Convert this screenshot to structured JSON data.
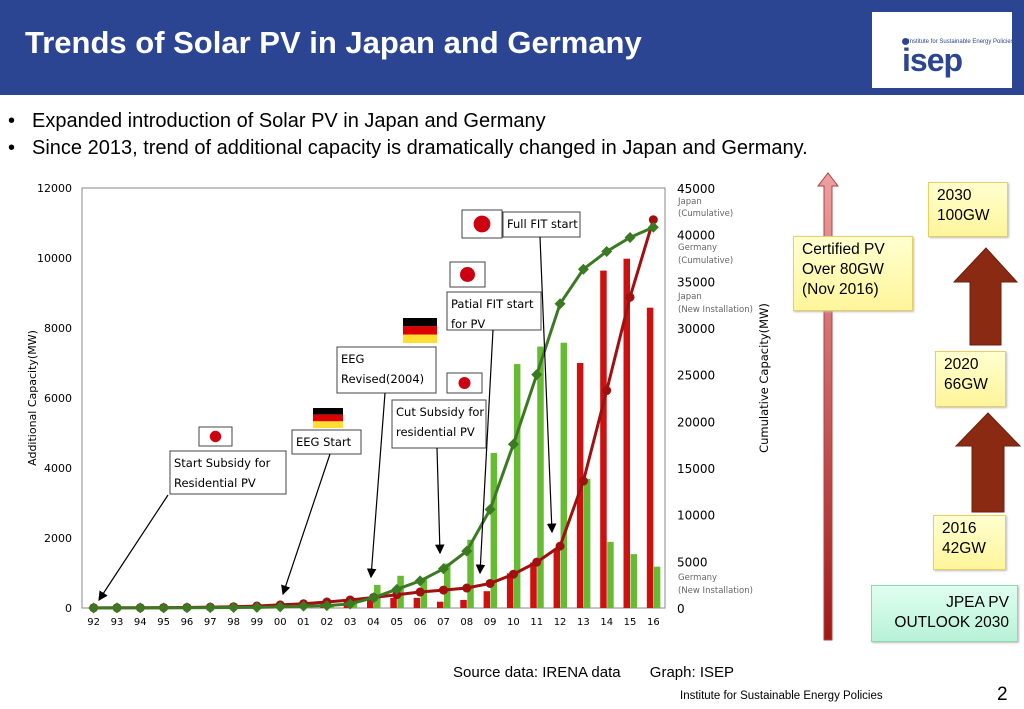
{
  "header": {
    "title": "Trends of Solar PV in Japan and Germany",
    "logo_text": "isep",
    "logo_subtext": "Institute for Sustainable Energy Policies"
  },
  "bullets": [
    "Expanded introduction of Solar PV in Japan and Germany",
    "Since 2013, trend of additional capacity is dramatically changed in Japan and Germany."
  ],
  "chart_data": {
    "type": "bar+line",
    "categories": [
      "92",
      "93",
      "94",
      "95",
      "96",
      "97",
      "98",
      "99",
      "00",
      "01",
      "02",
      "03",
      "04",
      "05",
      "06",
      "07",
      "08",
      "09",
      "10",
      "11",
      "12",
      "13",
      "14",
      "15",
      "16"
    ],
    "ylabel": "Additional Capacity(MW)",
    "y2label": "Cumulative Capacity(MW)",
    "ylim": [
      0,
      12000
    ],
    "y2lim": [
      0,
      45000
    ],
    "yticks": [
      "0",
      "2000",
      "4000",
      "6000",
      "8000",
      "10000",
      "12000"
    ],
    "y2ticks": [
      "0",
      "5000",
      "10000",
      "15000",
      "20000",
      "25000",
      "30000",
      "35000",
      "40000",
      "45000"
    ],
    "series": [
      {
        "name": "Japan (New Installation)",
        "axis": "left",
        "kind": "bar",
        "color": "#cc1111",
        "values": [
          2,
          3,
          5,
          10,
          16,
          24,
          33,
          40,
          60,
          70,
          120,
          220,
          270,
          290,
          290,
          180,
          230,
          480,
          990,
          1300,
          1700,
          7000,
          9640,
          9980,
          8580
        ]
      },
      {
        "name": "Germany (New Installation)",
        "axis": "left",
        "kind": "bar",
        "color": "#66bb33",
        "values": [
          1,
          2,
          3,
          4,
          8,
          10,
          12,
          16,
          44,
          81,
          65,
          175,
          660,
          920,
          850,
          1270,
          1950,
          4430,
          6970,
          7470,
          7580,
          3690,
          1890,
          1540,
          1180
        ]
      },
      {
        "name": "Japan (Cumulative)",
        "axis": "right",
        "kind": "line",
        "color": "#a01010",
        "values": [
          19,
          24,
          31,
          43,
          60,
          91,
          133,
          209,
          330,
          450,
          640,
          860,
          1130,
          1420,
          1710,
          1920,
          2140,
          2630,
          3620,
          4910,
          6630,
          13600,
          23300,
          33300,
          41600
        ]
      },
      {
        "name": "Germany (Cumulative)",
        "axis": "right",
        "kind": "line",
        "color": "#3b7a22",
        "values": [
          6,
          9,
          12,
          18,
          28,
          42,
          54,
          70,
          114,
          195,
          260,
          435,
          1100,
          2000,
          2900,
          4200,
          6100,
          10560,
          17550,
          25000,
          32600,
          36300,
          38200,
          39700,
          40800
        ]
      }
    ],
    "legend_labels": [
      [
        "Japan",
        "(Cumulative)"
      ],
      [
        "Germany",
        "(Cumulative)"
      ],
      [
        "Japan",
        "(New Installation)"
      ],
      [
        "Germany",
        "(New Installation)"
      ]
    ],
    "annotations": [
      "Start Subsidy for Residential PV",
      "EEG Start",
      "EEG Revised(2004)",
      "Cut Subsidy for residential PV",
      "Patial FIT start for PV",
      "Full FIT start"
    ]
  },
  "annotation_lines": {
    "a0": [
      "Start Subsidy for",
      "Residential PV"
    ],
    "a1": [
      "EEG Start"
    ],
    "a2": [
      "EEG",
      "Revised(2004)"
    ],
    "a3": [
      "Cut Subsidy for",
      "residential PV"
    ],
    "a4": [
      "Patial FIT start",
      "for PV"
    ],
    "a5": [
      "Full FIT start"
    ]
  },
  "outlook": {
    "certified": [
      "Certified PV",
      "Over 80GW",
      "(Nov 2016)"
    ],
    "y2030": [
      "2030",
      "100GW"
    ],
    "y2020": [
      "2020",
      "66GW"
    ],
    "y2016": [
      "2016",
      "42GW"
    ],
    "jpea": [
      "JPEA PV",
      "OUTLOOK 2030"
    ]
  },
  "footer": {
    "source": "Source data: IRENA data",
    "graph": "Graph: ISEP",
    "institute": "Institute for Sustainable Energy Policies",
    "page": "2"
  }
}
